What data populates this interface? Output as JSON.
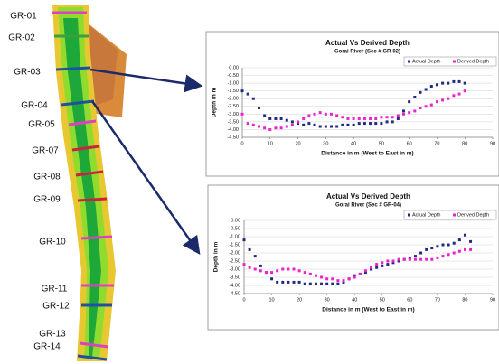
{
  "map": {
    "labels": [
      "GR-01",
      "GR-02",
      "GR-03",
      "GR-04",
      "GR-05",
      "GR-07",
      "GR-08",
      "GR-09",
      "GR-10",
      "GR-11",
      "GR-12",
      "GR-13",
      "GR-14"
    ]
  },
  "chart_data": [
    {
      "type": "scatter",
      "title": "Actual Vs Derived Depth",
      "subtitle": "Gorai River (Sec # GR-02)",
      "x_label": "Distance in m (West to East in m)",
      "y_label": "Depth in m",
      "x": [
        0,
        2,
        4,
        6,
        8,
        10,
        12,
        14,
        16,
        18,
        20,
        22,
        24,
        26,
        28,
        30,
        32,
        34,
        36,
        38,
        40,
        42,
        44,
        46,
        48,
        50,
        52,
        54,
        56,
        58,
        60,
        62,
        64,
        66,
        68,
        70,
        72,
        74,
        76,
        78,
        80
      ],
      "series": [
        {
          "name": "Actual Depth",
          "color": "#1f2a80",
          "values": [
            -1.5,
            -1.7,
            -2.0,
            -2.6,
            -3.1,
            -3.3,
            -3.3,
            -3.3,
            -3.4,
            -3.5,
            -3.6,
            -3.7,
            -3.6,
            -3.7,
            -3.8,
            -3.8,
            -3.8,
            -3.8,
            -3.7,
            -3.7,
            -3.7,
            -3.6,
            -3.6,
            -3.6,
            -3.6,
            -3.6,
            -3.5,
            -3.5,
            -3.3,
            -2.8,
            -2.2,
            -1.9,
            -1.6,
            -1.4,
            -1.2,
            -1.1,
            -1.0,
            -1.0,
            -0.9,
            -0.9,
            -1.0
          ]
        },
        {
          "name": "Derived Depth",
          "color": "#ee22cc",
          "values": [
            -3.0,
            -3.6,
            -3.7,
            -3.8,
            -3.9,
            -4.0,
            -3.9,
            -3.9,
            -3.8,
            -3.7,
            -3.5,
            -3.3,
            -3.1,
            -3.0,
            -2.9,
            -3.0,
            -3.0,
            -3.1,
            -3.2,
            -3.3,
            -3.3,
            -3.3,
            -3.3,
            -3.3,
            -3.3,
            -3.2,
            -3.2,
            -3.2,
            -3.1,
            -3.0,
            -2.9,
            -2.8,
            -2.6,
            -2.5,
            -2.4,
            -2.2,
            -2.1,
            -2.0,
            -1.8,
            -1.7,
            -1.5
          ]
        }
      ],
      "xlim": [
        0,
        90
      ],
      "xticks": [
        0,
        10,
        20,
        30,
        40,
        50,
        60,
        70,
        80,
        90
      ],
      "ylim": [
        -4.5,
        0
      ],
      "yticks": [
        {
          "value": 0,
          "label": "0.00"
        },
        {
          "value": -0.5,
          "label": "-0.50"
        },
        {
          "value": -1,
          "label": "-1.00"
        },
        {
          "value": -1.5,
          "label": "-1.50"
        },
        {
          "value": -2,
          "label": "-2.00"
        },
        {
          "value": -2.5,
          "label": "-2.50"
        },
        {
          "value": -3,
          "label": "-3.00"
        },
        {
          "value": -3.5,
          "label": "-3.50"
        },
        {
          "value": -4,
          "label": "-4.00"
        },
        {
          "value": -4.5,
          "label": "-4.50"
        }
      ],
      "grid": true,
      "legend": "top-right"
    },
    {
      "type": "scatter",
      "title": "Actual Vs Derived Depth",
      "subtitle": "Gorai River (Sec # GR-04)",
      "x_label": "Distance in m (West to East in m)",
      "y_label": "Depth in m",
      "x": [
        0,
        2,
        4,
        6,
        8,
        10,
        12,
        14,
        16,
        18,
        20,
        22,
        24,
        26,
        28,
        30,
        32,
        34,
        36,
        38,
        40,
        42,
        44,
        46,
        48,
        50,
        52,
        54,
        56,
        58,
        60,
        62,
        64,
        66,
        68,
        70,
        72,
        74,
        76,
        78,
        80,
        82
      ],
      "series": [
        {
          "name": "Actual Depth",
          "color": "#1f2a80",
          "values": [
            -1.2,
            -1.8,
            -2.2,
            -2.8,
            -3.2,
            -3.6,
            -3.8,
            -3.8,
            -3.8,
            -3.8,
            -3.8,
            -3.9,
            -3.9,
            -3.9,
            -3.9,
            -3.9,
            -3.9,
            -3.9,
            -3.8,
            -3.6,
            -3.4,
            -3.3,
            -3.2,
            -3.0,
            -2.9,
            -2.8,
            -2.7,
            -2.6,
            -2.5,
            -2.4,
            -2.3,
            -2.2,
            -2.0,
            -1.8,
            -1.7,
            -1.6,
            -1.5,
            -1.5,
            -1.4,
            -1.2,
            -0.9,
            -1.3
          ]
        },
        {
          "name": "Derived Depth",
          "color": "#ee22cc",
          "values": [
            -2.7,
            -2.9,
            -3.0,
            -3.1,
            -3.2,
            -3.2,
            -3.1,
            -3.0,
            -3.0,
            -3.0,
            -3.1,
            -3.2,
            -3.3,
            -3.4,
            -3.5,
            -3.6,
            -3.6,
            -3.7,
            -3.7,
            -3.6,
            -3.5,
            -3.3,
            -3.1,
            -2.9,
            -2.7,
            -2.6,
            -2.5,
            -2.5,
            -2.4,
            -2.4,
            -2.4,
            -2.4,
            -2.4,
            -2.4,
            -2.4,
            -2.3,
            -2.2,
            -2.1,
            -2.0,
            -1.9,
            -1.8,
            -1.8
          ]
        }
      ],
      "xlim": [
        0,
        90
      ],
      "xticks": [
        0,
        10,
        20,
        30,
        40,
        50,
        60,
        70,
        80,
        90
      ],
      "ylim": [
        -4.5,
        0
      ],
      "yticks": [
        {
          "value": 0,
          "label": "0.00"
        },
        {
          "value": -0.5,
          "label": "-0.50"
        },
        {
          "value": -1,
          "label": "-1.00"
        },
        {
          "value": -1.5,
          "label": "-1.50"
        },
        {
          "value": -2,
          "label": "-2.00"
        },
        {
          "value": -2.5,
          "label": "-2.50"
        },
        {
          "value": -3,
          "label": "-3.00"
        },
        {
          "value": -3.5,
          "label": "-3.50"
        },
        {
          "value": -4,
          "label": "-4.00"
        },
        {
          "value": -4.5,
          "label": "-4.50"
        }
      ],
      "grid": true,
      "legend": "top-right"
    }
  ]
}
